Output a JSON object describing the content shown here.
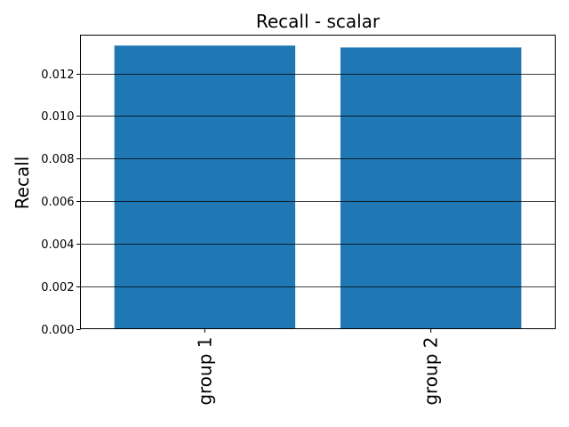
{
  "chart_data": {
    "type": "bar",
    "title": "Recall - scalar",
    "xlabel": "",
    "ylabel": "Recall",
    "categories": [
      "group 1",
      "group 2"
    ],
    "values": [
      0.01331,
      0.01322
    ],
    "ylim": [
      0,
      0.0138
    ],
    "yticks": [
      0.0,
      0.002,
      0.004,
      0.006,
      0.008,
      0.01,
      0.012
    ],
    "ytick_labels": [
      "0.000",
      "0.002",
      "0.004",
      "0.006",
      "0.008",
      "0.010",
      "0.012"
    ],
    "grid": "y-major",
    "colors": {
      "bar": "#1f77b4",
      "grid": "#000000",
      "axes": "#000000"
    }
  }
}
